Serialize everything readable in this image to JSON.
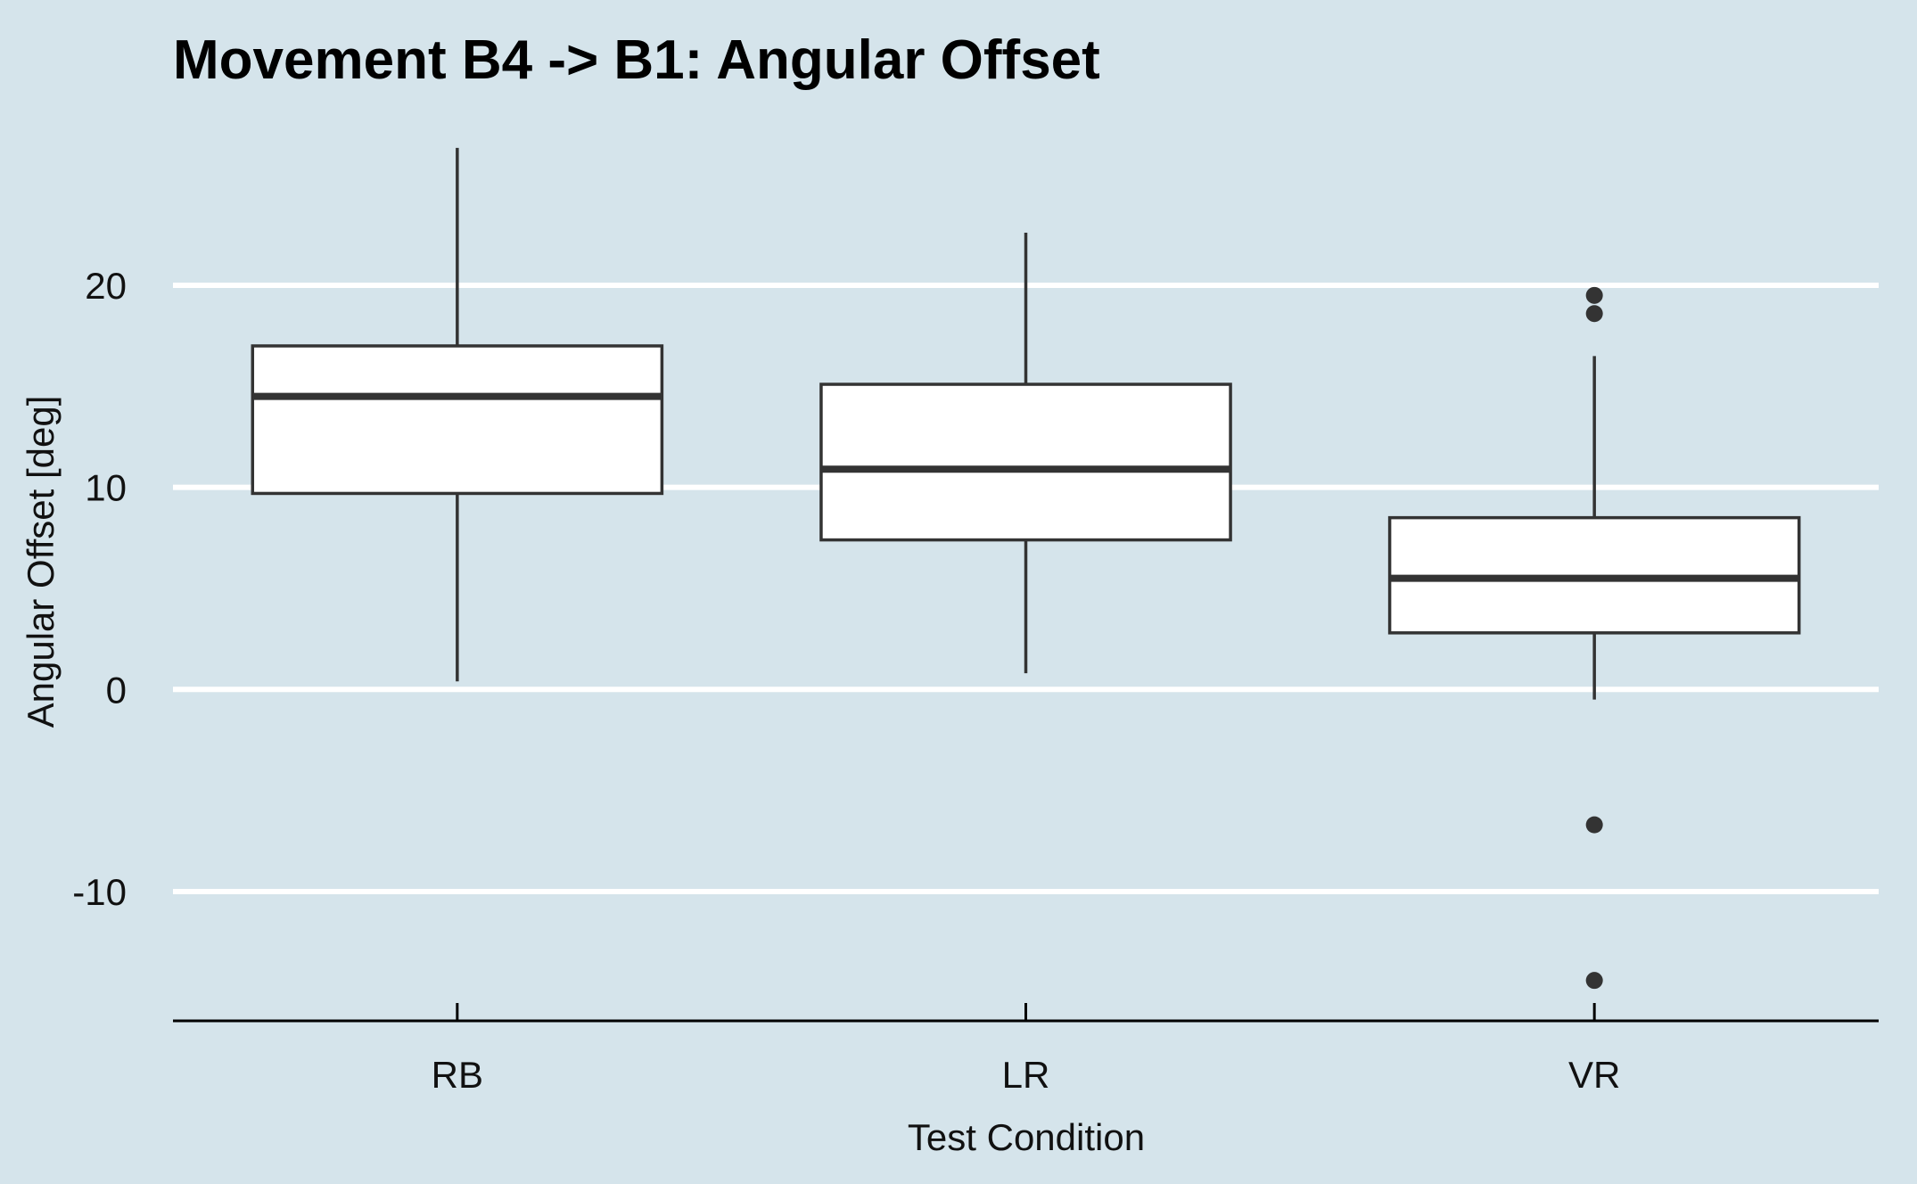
{
  "chart_data": {
    "type": "box",
    "title": "Movement B4 -> B1: Angular Offset",
    "xlabel": "Test Condition",
    "ylabel": "Angular Offset [deg]",
    "ylim": [
      -16.4,
      27.5
    ],
    "yticks": [
      -10,
      0,
      10,
      20
    ],
    "ytick_labels": [
      "-10",
      "0",
      "10",
      "20"
    ],
    "grid": "horizontal",
    "colors": {
      "background": "#d5e4eb",
      "grid": "#ffffff",
      "box_fill": "#ffffff",
      "box_stroke": "#333333",
      "axis": "#000000"
    },
    "categories": [
      "RB",
      "LR",
      "VR"
    ],
    "boxes": [
      {
        "name": "RB",
        "whisker_low": 0.4,
        "q1": 9.7,
        "median": 14.5,
        "q3": 17.0,
        "whisker_high": 26.8,
        "outliers": []
      },
      {
        "name": "LR",
        "whisker_low": 0.8,
        "q1": 7.4,
        "median": 10.9,
        "q3": 15.1,
        "whisker_high": 22.6,
        "outliers": []
      },
      {
        "name": "VR",
        "whisker_low": -0.5,
        "q1": 2.8,
        "median": 5.5,
        "q3": 8.5,
        "whisker_high": 16.5,
        "outliers": [
          19.5,
          18.6,
          -6.7,
          -14.4
        ]
      }
    ]
  }
}
